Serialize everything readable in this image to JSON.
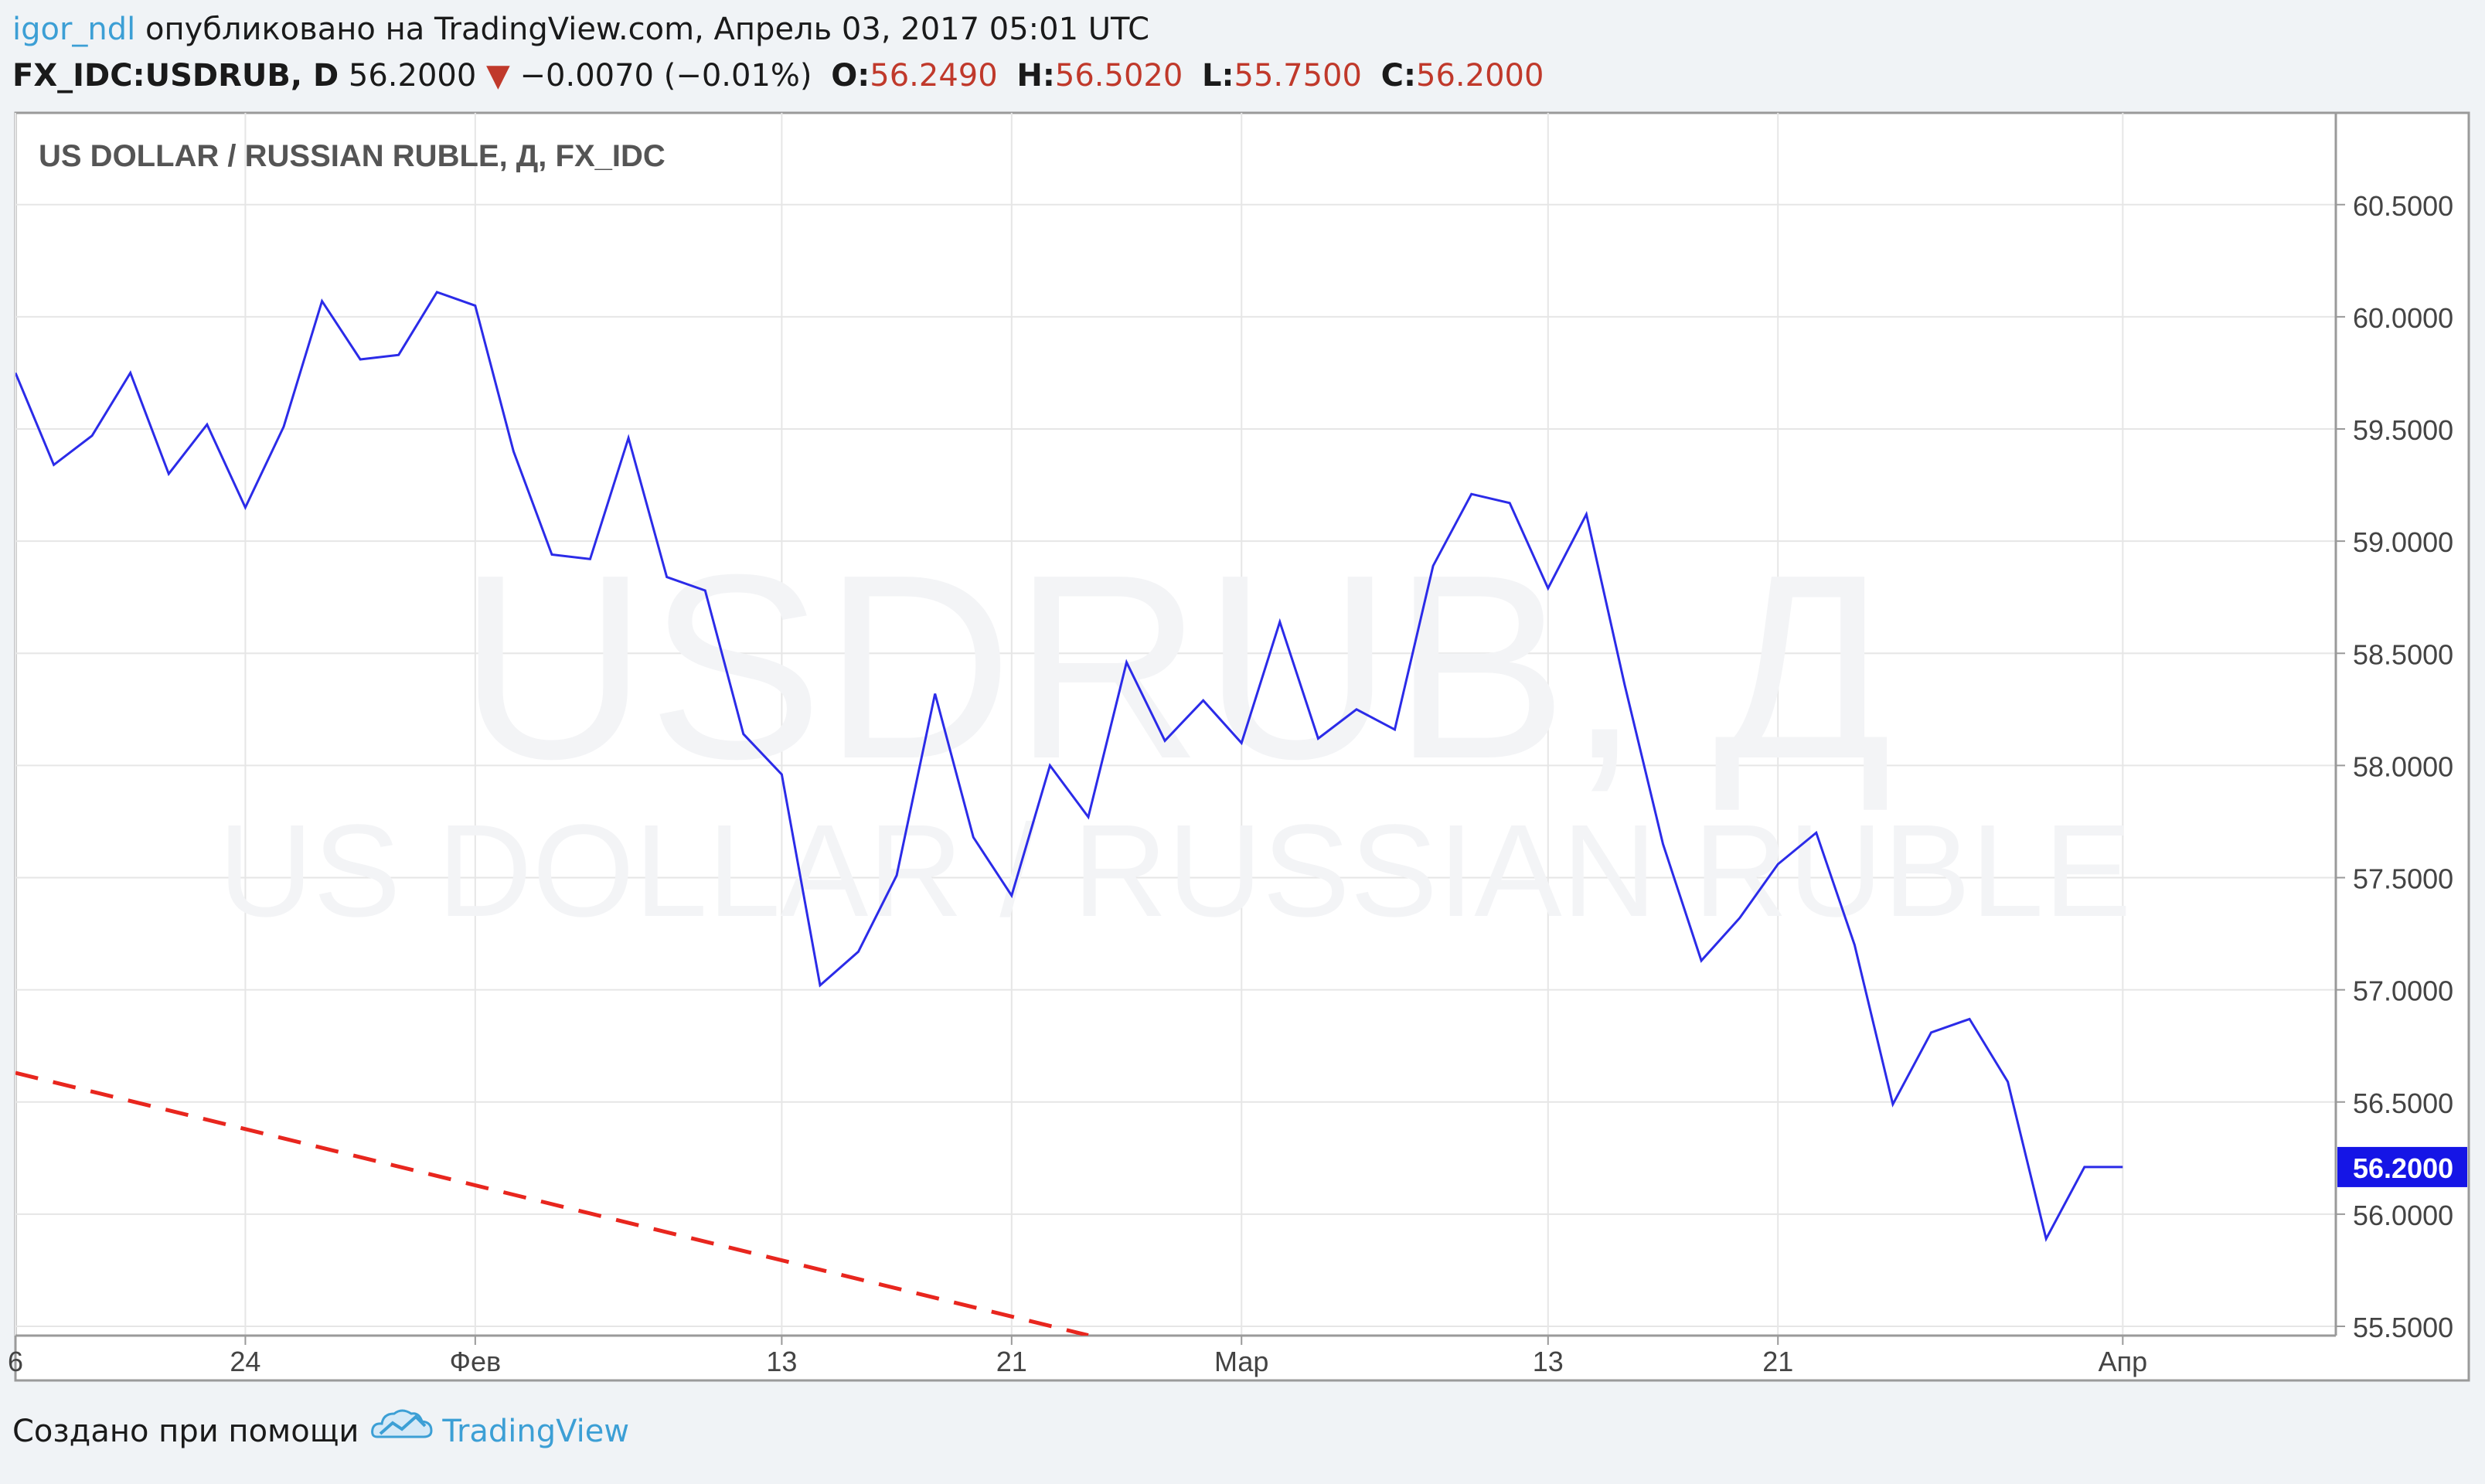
{
  "header": {
    "user": "igor_ndl",
    "published_text": " опубликовано на TradingView.com, Апрель 03, 2017 05:01 UTC",
    "symbol": "FX_IDC:USDRUB, D",
    "price": "56.2000",
    "arrow": "▼",
    "change": "−0.0070 (−0.01%)",
    "ohlc": [
      {
        "label": "O:",
        "value": "56.2490"
      },
      {
        "label": "H:",
        "value": "56.5020"
      },
      {
        "label": "L:",
        "value": "55.7500"
      },
      {
        "label": "C:",
        "value": "56.2000"
      }
    ]
  },
  "footer": {
    "created_with": "Создано при помощи",
    "link_text": "TradingView",
    "logo_icon": "tradingview-cloud-icon"
  },
  "colors": {
    "line": "#2b2be8",
    "trend": "#e8261e",
    "price_label_bg": "#1515e6",
    "down": "#c0392b",
    "brand": "#3c9fd5"
  },
  "chart_data": {
    "type": "line",
    "title": "US DOLLAR / RUSSIAN RUBLE, Д, FX_IDC",
    "watermark": [
      "USDRUB, Д",
      "US DOLLAR / RUSSIAN RUBLE"
    ],
    "grid": true,
    "ylim": [
      55.5,
      60.8
    ],
    "ytick_values": [
      55.5,
      56.0,
      56.5,
      57.0,
      57.5,
      58.0,
      58.5,
      59.0,
      59.5,
      60.0,
      60.5
    ],
    "ytick_labels": [
      "55.5000",
      "56.0000",
      "56.5000",
      "57.0000",
      "57.5000",
      "58.0000",
      "58.5000",
      "59.0000",
      "59.5000",
      "60.0000",
      "60.5000"
    ],
    "x_range_index": [
      0,
      60.5
    ],
    "xticks": [
      {
        "index": 0,
        "label": "6"
      },
      {
        "index": 6,
        "label": "24"
      },
      {
        "index": 12,
        "label": "Фев"
      },
      {
        "index": 20,
        "label": "13"
      },
      {
        "index": 26,
        "label": "21"
      },
      {
        "index": 32,
        "label": "Мар"
      },
      {
        "index": 40,
        "label": "13"
      },
      {
        "index": 46,
        "label": "21"
      },
      {
        "index": 55,
        "label": "Апр"
      }
    ],
    "series": [
      {
        "type": "line",
        "values": [
          59.75,
          59.34,
          59.47,
          59.75,
          59.3,
          59.52,
          59.15,
          59.51,
          60.07,
          59.81,
          59.83,
          60.11,
          60.05,
          59.4,
          58.94,
          58.92,
          59.46,
          58.84,
          58.78,
          58.14,
          57.96,
          57.02,
          57.17,
          57.51,
          58.32,
          57.68,
          57.42,
          58.0,
          57.77,
          58.46,
          58.11,
          58.29,
          58.1,
          58.64,
          58.12,
          58.25,
          58.16,
          58.89,
          59.21,
          59.17,
          58.79,
          59.12,
          58.36,
          57.65,
          57.13,
          57.32,
          57.56,
          57.7,
          57.2,
          56.49,
          56.81,
          56.87,
          56.59,
          55.89,
          56.21,
          56.21
        ]
      }
    ],
    "trendline": {
      "start": {
        "index": 0,
        "value": 56.63
      },
      "end": {
        "index": 28,
        "value": 55.46
      },
      "style": "dashed"
    },
    "last_price_label": "56.2000"
  }
}
